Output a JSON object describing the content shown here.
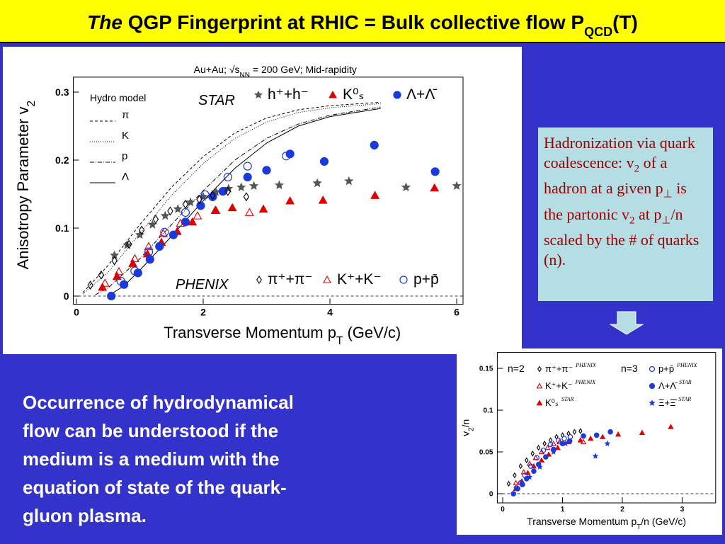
{
  "title": [
    "The",
    " QGP Fingerprint at RHIC = Bulk collective flow  P",
    "QCD",
    "(T)"
  ],
  "chart_data": [
    {
      "type": "scatter",
      "title": [
        "Au+Au; √s",
        "NN",
        " = 200 GeV; Mid-rapidity"
      ],
      "xlabel": [
        "Transverse Momentum p",
        "T",
        " (GeV/c)"
      ],
      "ylabel": [
        "Anisotropy Parameter v",
        "2"
      ],
      "xlim": [
        -0.05,
        6.1
      ],
      "ylim": [
        -0.012,
        0.322
      ],
      "xticks": [
        0,
        2,
        4,
        6
      ],
      "yticks": [
        0,
        0.1,
        0.2,
        0.3
      ],
      "zero_line": true,
      "legend_title": "Hydro model",
      "annotations": [
        "STAR",
        "PHENIX"
      ],
      "series": [
        {
          "name": "π",
          "color": "#000000",
          "marker": null,
          "dash": "4,3",
          "x": [
            0.1,
            0.5,
            1,
            1.5,
            2,
            2.5,
            3,
            3.5,
            4,
            4.8
          ],
          "values": [
            0.005,
            0.045,
            0.105,
            0.16,
            0.205,
            0.24,
            0.262,
            0.274,
            0.28,
            0.285
          ]
        },
        {
          "name": "K",
          "color": "#000000",
          "marker": null,
          "dash": "1,2",
          "x": [
            0.1,
            0.5,
            1,
            1.5,
            2,
            2.5,
            3,
            3.5,
            4,
            4.8
          ],
          "values": [
            0.003,
            0.035,
            0.092,
            0.148,
            0.195,
            0.232,
            0.256,
            0.27,
            0.277,
            0.283
          ]
        },
        {
          "name": "p",
          "color": "#000000",
          "marker": null,
          "dash": "6,2,1,2",
          "x": [
            0.3,
            0.5,
            1,
            1.5,
            2,
            2.5,
            3,
            3.5,
            4,
            4.8
          ],
          "values": [
            0.002,
            0.012,
            0.055,
            0.105,
            0.155,
            0.2,
            0.232,
            0.253,
            0.266,
            0.278
          ]
        },
        {
          "name": "Λ",
          "color": "#000000",
          "marker": null,
          "dash": null,
          "x": [
            0.5,
            0.75,
            1,
            1.5,
            2,
            2.5,
            3,
            3.5,
            4,
            4.8
          ],
          "values": [
            0.0,
            0.015,
            0.038,
            0.088,
            0.14,
            0.188,
            0.225,
            0.25,
            0.264,
            0.276
          ]
        },
        {
          "name": "h⁺+h⁻",
          "color": "#555555",
          "marker": "star",
          "x": [
            0.6,
            0.8,
            1.0,
            1.2,
            1.4,
            1.6,
            1.8,
            2.0,
            2.2,
            2.4,
            2.6,
            2.8,
            3.2,
            3.8,
            4.3,
            5.2,
            6.0
          ],
          "values": [
            0.06,
            0.075,
            0.09,
            0.105,
            0.118,
            0.128,
            0.138,
            0.146,
            0.153,
            0.158,
            0.16,
            0.162,
            0.163,
            0.166,
            0.169,
            0.16,
            0.162
          ]
        },
        {
          "name": "K⁰ₛ",
          "color": "#e00000",
          "marker": "triangle",
          "x": [
            0.41,
            0.64,
            0.89,
            1.12,
            1.34,
            1.59,
            1.83,
            2.19,
            2.46,
            2.95,
            3.37,
            3.89,
            4.71,
            5.65
          ],
          "values": [
            0.013,
            0.029,
            0.048,
            0.062,
            0.079,
            0.095,
            0.109,
            0.126,
            0.13,
            0.128,
            0.14,
            0.141,
            0.148,
            0.159
          ]
        },
        {
          "name": "Λ+Λ̄",
          "color": "#1a3adc",
          "marker": "circle",
          "x": [
            0.55,
            0.75,
            0.97,
            1.16,
            1.31,
            1.53,
            1.72,
            1.96,
            2.15,
            2.31,
            2.7,
            3.0,
            3.37,
            3.91,
            4.7,
            5.66
          ],
          "values": [
            0.0,
            0.017,
            0.034,
            0.054,
            0.073,
            0.09,
            0.109,
            0.133,
            0.146,
            0.154,
            0.175,
            0.185,
            0.209,
            0.198,
            0.222,
            0.183
          ]
        },
        {
          "name": "π⁺+π⁻",
          "color": "#000000",
          "marker": "diamond-open",
          "x": [
            0.22,
            0.39,
            0.6,
            0.83,
            1.03,
            1.25,
            1.48,
            1.72,
            1.94,
            2.15,
            2.39,
            2.68
          ],
          "values": [
            0.016,
            0.031,
            0.052,
            0.076,
            0.097,
            0.113,
            0.125,
            0.135,
            0.142,
            0.148,
            0.154,
            0.146
          ]
        },
        {
          "name": "K⁺+K⁻",
          "color": "#e00000",
          "marker": "triangle-open",
          "x": [
            0.45,
            0.67,
            0.92,
            1.14,
            1.37,
            1.64,
            1.91,
            2.2,
            2.73
          ],
          "values": [
            0.019,
            0.036,
            0.055,
            0.073,
            0.092,
            0.107,
            0.118,
            0.126,
            0.123
          ]
        },
        {
          "name": "p+p̄",
          "color": "#1a3adc",
          "marker": "circle-open",
          "x": [
            0.7,
            0.92,
            1.14,
            1.39,
            1.72,
            2.03,
            2.39,
            2.7,
            3.31
          ],
          "values": [
            0.022,
            0.037,
            0.065,
            0.094,
            0.123,
            0.149,
            0.175,
            0.191,
            0.206
          ]
        }
      ]
    },
    {
      "type": "scatter",
      "xlabel": [
        "Transverse Momentum p",
        "T",
        "/n (GeV/c)"
      ],
      "ylabel": [
        "v",
        "2",
        "/n"
      ],
      "xlim": [
        -0.09,
        3.56
      ],
      "ylim": [
        -0.011,
        0.169
      ],
      "xticks": [
        0,
        1,
        2,
        3
      ],
      "yticks": [
        0,
        0.05,
        0.1,
        0.15
      ],
      "zero_line": true,
      "annotations": [
        "n=2",
        "n=3"
      ],
      "series": [
        {
          "name": "π⁺+π⁻",
          "experiment": "PHENIX",
          "color": "#000000",
          "marker": "diamond-open",
          "x": [
            0.1,
            0.2,
            0.3,
            0.4,
            0.5,
            0.6,
            0.7,
            0.8,
            0.9,
            1.0,
            1.1,
            1.2,
            1.3
          ],
          "values": [
            0.012,
            0.022,
            0.033,
            0.04,
            0.048,
            0.055,
            0.06,
            0.064,
            0.068,
            0.07,
            0.072,
            0.074,
            0.075
          ]
        },
        {
          "name": "K⁺+K⁻",
          "experiment": "PHENIX",
          "color": "#e00000",
          "marker": "triangle-open",
          "x": [
            0.22,
            0.35,
            0.45,
            0.55,
            0.65,
            0.75,
            0.85,
            0.95,
            1.1,
            1.35
          ],
          "values": [
            0.013,
            0.026,
            0.036,
            0.043,
            0.05,
            0.055,
            0.06,
            0.062,
            0.063,
            0.062
          ]
        },
        {
          "name": "K⁰ₛ",
          "experiment": "STAR",
          "color": "#e00000",
          "marker": "triangle",
          "x": [
            0.22,
            0.32,
            0.42,
            0.52,
            0.65,
            0.77,
            0.92,
            1.1,
            1.3,
            1.47,
            1.67,
            1.93,
            2.33,
            2.81
          ],
          "values": [
            0.006,
            0.015,
            0.025,
            0.033,
            0.04,
            0.047,
            0.055,
            0.062,
            0.064,
            0.066,
            0.068,
            0.071,
            0.073,
            0.08
          ]
        },
        {
          "name": "p+p̄",
          "experiment": "PHENIX",
          "color": "#1a3adc",
          "marker": "circle-open",
          "x": [
            0.23,
            0.3,
            0.37,
            0.47,
            0.57,
            0.68,
            0.8,
            0.93,
            1.03,
            1.13
          ],
          "values": [
            0.007,
            0.013,
            0.022,
            0.033,
            0.043,
            0.052,
            0.059,
            0.064,
            0.066,
            0.068
          ]
        },
        {
          "name": "Λ+Λ̄",
          "experiment": "STAR",
          "color": "#1a3adc",
          "marker": "circle",
          "x": [
            0.18,
            0.25,
            0.33,
            0.4,
            0.52,
            0.6,
            0.72,
            0.85,
            1.0,
            1.12,
            1.35,
            1.57,
            1.8
          ],
          "values": [
            0.0,
            0.006,
            0.011,
            0.018,
            0.027,
            0.035,
            0.044,
            0.053,
            0.06,
            0.063,
            0.069,
            0.07,
            0.074
          ]
        },
        {
          "name": "Ξ+Ξ̄",
          "experiment": "STAR",
          "color": "#1a3adc",
          "marker": "star",
          "x": [
            0.45,
            0.62,
            0.85,
            1.05,
            1.55,
            1.75
          ],
          "values": [
            0.02,
            0.032,
            0.05,
            0.06,
            0.045,
            0.06
          ]
        }
      ]
    }
  ],
  "note": [
    "Hadronization via quark coalescence: v",
    "2",
    " of a hadron at a given p",
    "⊥",
    " is the partonic v",
    "2",
    " at p",
    "⊥",
    "/n scaled by the # of quarks (n)."
  ],
  "body": [
    "Occurrence of hydrodynamical",
    "flow can be understood if the",
    "medium is a  medium with the",
    "equation of state of the quark-",
    "gluon plasma."
  ]
}
